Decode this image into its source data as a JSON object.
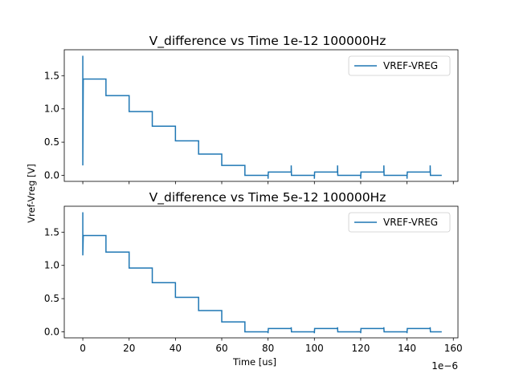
{
  "chart_data": [
    {
      "type": "line",
      "title": "V_difference vs Time 1e-12 100000Hz",
      "xlabel": "",
      "ylabel": "Vref-Vreg [V]",
      "x_scale_label": "",
      "xlim": [
        -8,
        162
      ],
      "ylim": [
        -0.09,
        1.89
      ],
      "xticks": [
        0,
        20,
        40,
        60,
        80,
        100,
        120,
        140,
        160
      ],
      "xtick_labels": [
        "",
        "",
        "",
        "",
        "",
        "",
        "",
        "",
        ""
      ],
      "yticks": [
        0.0,
        0.5,
        1.0,
        1.5
      ],
      "ytick_labels": [
        "0.0",
        "0.5",
        "1.0",
        "1.5"
      ],
      "legend_position": "upper right",
      "series": [
        {
          "name": "VREF-VREG",
          "color": "#1f77b4",
          "x": [
            0,
            0,
            0,
            0.2,
            0.2,
            10,
            10,
            20,
            20,
            30,
            30,
            40,
            40,
            50,
            50,
            60,
            60,
            70,
            70,
            80,
            80,
            80.1,
            90,
            90,
            90.1,
            100,
            100,
            100.1,
            110,
            110,
            110.1,
            120,
            120,
            120.1,
            130,
            130,
            130.1,
            140,
            140,
            140.1,
            150,
            150,
            150.1,
            155
          ],
          "y": [
            0.15,
            1.8,
            0.15,
            1.45,
            1.45,
            1.45,
            1.2,
            1.2,
            0.96,
            0.96,
            0.74,
            0.74,
            0.52,
            0.52,
            0.32,
            0.32,
            0.15,
            0.15,
            0.0,
            0.0,
            -0.05,
            0.05,
            0.05,
            0.15,
            0.0,
            0.0,
            -0.05,
            0.05,
            0.05,
            0.15,
            0.0,
            0.0,
            -0.05,
            0.05,
            0.05,
            0.15,
            0.0,
            0.0,
            -0.05,
            0.05,
            0.05,
            0.15,
            0.0,
            0.0
          ]
        }
      ]
    },
    {
      "type": "line",
      "title": "V_difference vs Time 5e-12 100000Hz",
      "xlabel": "Time [us]",
      "ylabel": "",
      "x_scale_label": "1e−6",
      "xlim": [
        -8,
        162
      ],
      "ylim": [
        -0.09,
        1.89
      ],
      "xticks": [
        0,
        20,
        40,
        60,
        80,
        100,
        120,
        140,
        160
      ],
      "xtick_labels": [
        "0",
        "20",
        "40",
        "60",
        "80",
        "100",
        "120",
        "140",
        "160"
      ],
      "yticks": [
        0.0,
        0.5,
        1.0,
        1.5
      ],
      "ytick_labels": [
        "0.0",
        "0.5",
        "1.0",
        "1.5"
      ],
      "legend_position": "upper right",
      "series": [
        {
          "name": "VREF-VREG",
          "color": "#1f77b4",
          "x": [
            0,
            0,
            0,
            0.2,
            0.2,
            10,
            10,
            20,
            20,
            30,
            30,
            40,
            40,
            50,
            50,
            60,
            60,
            70,
            70,
            80,
            80,
            80.1,
            90,
            90,
            90.1,
            100,
            100,
            100.1,
            110,
            110,
            110.1,
            120,
            120,
            120.1,
            130,
            130,
            130.1,
            140,
            140,
            140.1,
            150,
            150,
            150.1,
            155
          ],
          "y": [
            1.15,
            1.8,
            1.15,
            1.45,
            1.45,
            1.45,
            1.2,
            1.2,
            0.96,
            0.96,
            0.74,
            0.74,
            0.52,
            0.52,
            0.32,
            0.32,
            0.15,
            0.15,
            0.0,
            0.0,
            -0.02,
            0.05,
            0.05,
            0.07,
            0.0,
            0.0,
            -0.02,
            0.05,
            0.05,
            0.07,
            0.0,
            0.0,
            -0.02,
            0.05,
            0.05,
            0.07,
            0.0,
            0.0,
            -0.02,
            0.05,
            0.05,
            0.07,
            0.0,
            0.0
          ]
        }
      ]
    }
  ]
}
